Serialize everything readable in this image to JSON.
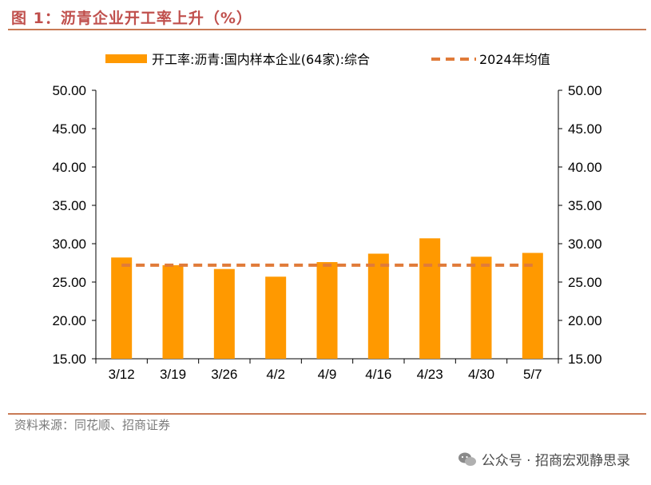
{
  "figure_title": "图 1：沥青企业开工率上升（%）",
  "source": "资料来源：同花顺、招商证券",
  "watermark": "公众号 · 招商宏观静思录",
  "colors": {
    "bar": "#ff9900",
    "avg_line": "#e07b39",
    "accent": "#c0504d"
  },
  "chart_data": {
    "type": "bar",
    "categories": [
      "3/12",
      "3/19",
      "3/26",
      "4/2",
      "4/9",
      "4/16",
      "4/23",
      "4/30",
      "5/7"
    ],
    "series": [
      {
        "name": "开工率:沥青:国内样本企业(64家):综合",
        "kind": "bar",
        "values": [
          28.2,
          27.2,
          26.7,
          25.7,
          27.6,
          28.7,
          30.7,
          28.3,
          28.8
        ]
      },
      {
        "name": "2024年均值",
        "kind": "dashed-line",
        "values": [
          27.2,
          27.2,
          27.2,
          27.2,
          27.2,
          27.2,
          27.2,
          27.2,
          27.2
        ]
      }
    ],
    "ylim": [
      15,
      50
    ],
    "yticks": [
      "15.00",
      "20.00",
      "25.00",
      "30.00",
      "35.00",
      "40.00",
      "45.00",
      "50.00"
    ],
    "ytick_values": [
      15,
      20,
      25,
      30,
      35,
      40,
      45,
      50
    ],
    "secondary_axis": true,
    "legend_position": "top",
    "grid": false
  }
}
